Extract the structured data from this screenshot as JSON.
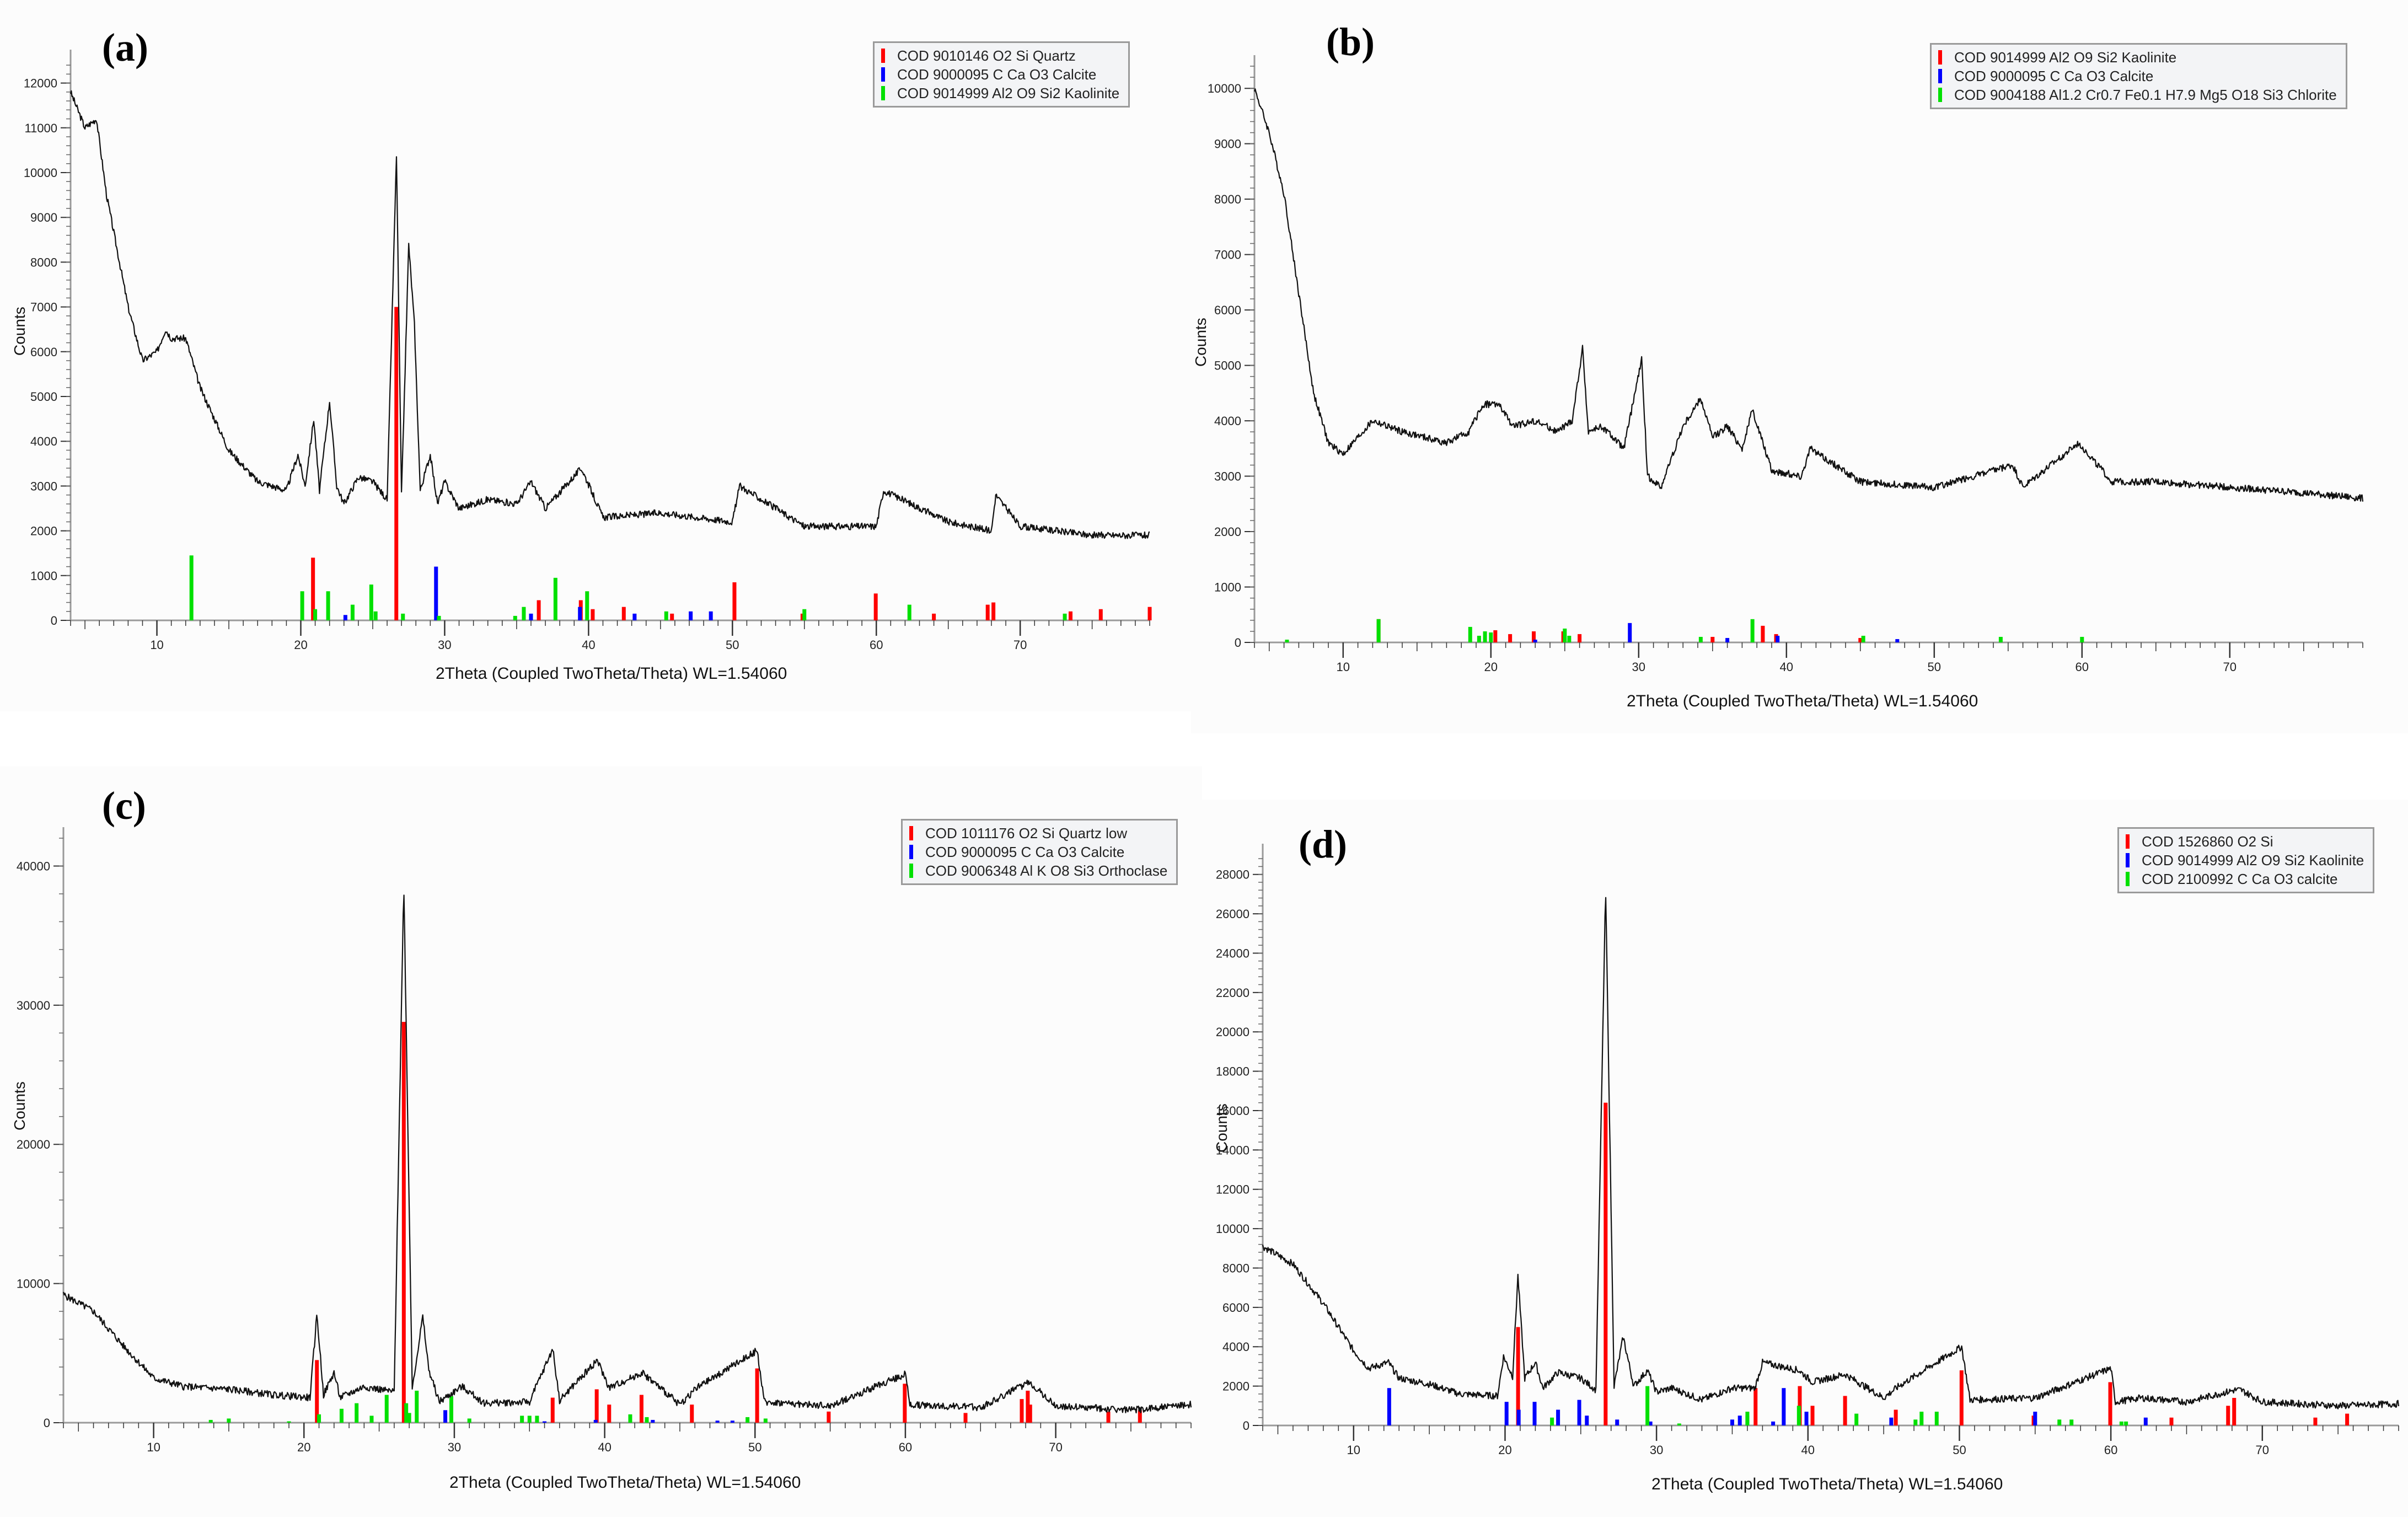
{
  "figure": {
    "panels": [
      {
        "id": "a",
        "label": "(a)",
        "legend": [
          {
            "text": "COD 9010146 O2 Si Quartz",
            "color": "#ff0000"
          },
          {
            "text": "COD 9000095 C Ca O3 Calcite",
            "color": "#0000ff"
          },
          {
            "text": "COD 9014999 Al2 O9 Si2 Kaolinite",
            "color": "#00e000"
          }
        ],
        "xlabel": "2Theta (Coupled TwoTheta/Theta) WL=1.54060",
        "ylabel": "Counts"
      },
      {
        "id": "b",
        "label": "(b)",
        "legend": [
          {
            "text": "COD 9014999 Al2 O9 Si2 Kaolinite",
            "color": "#ff0000"
          },
          {
            "text": "COD 9000095 C Ca O3 Calcite",
            "color": "#0000ff"
          },
          {
            "text": "COD 9004188 Al1.2 Cr0.7 Fe0.1 H7.9 Mg5 O18 Si3 Chlorite",
            "color": "#00e000"
          }
        ],
        "xlabel": "2Theta (Coupled TwoTheta/Theta) WL=1.54060",
        "ylabel": "Counts"
      },
      {
        "id": "c",
        "label": "(c)",
        "legend": [
          {
            "text": "COD 1011176 O2 Si Quartz low",
            "color": "#ff0000"
          },
          {
            "text": "COD 9000095 C Ca O3 Calcite",
            "color": "#0000ff"
          },
          {
            "text": "COD 9006348 Al K O8 Si3 Orthoclase",
            "color": "#00e000"
          }
        ],
        "xlabel": "2Theta (Coupled TwoTheta/Theta) WL=1.54060",
        "ylabel": "Counts"
      },
      {
        "id": "d",
        "label": "(d)",
        "legend": [
          {
            "text": "COD 1526860 O2 Si",
            "color": "#ff0000"
          },
          {
            "text": "COD 9014999 Al2 O9 Si2 Kaolinite",
            "color": "#0000ff"
          },
          {
            "text": "COD 2100992 C Ca O3 calcite",
            "color": "#00e000"
          }
        ],
        "xlabel": "2Theta (Coupled TwoTheta/Theta) WL=1.54060",
        "ylabel": "Counts"
      }
    ]
  },
  "chart_data": [
    {
      "type": "line",
      "panel": "a",
      "title": "(a)",
      "xlabel": "2Theta (Coupled TwoTheta/Theta) WL=1.54060",
      "ylabel": "Counts",
      "xlim": [
        4,
        79
      ],
      "ylim": [
        0,
        12500
      ],
      "xticks": [
        10,
        20,
        30,
        40,
        50,
        60,
        70
      ],
      "yticks": [
        0,
        1000,
        2000,
        3000,
        4000,
        5000,
        6000,
        7000,
        8000,
        9000,
        10000,
        11000,
        12000
      ],
      "pattern": {
        "x": [
          4,
          5,
          5.8,
          6.5,
          8,
          9,
          10,
          10.6,
          11,
          12,
          13,
          15,
          17,
          19,
          19.8,
          20.3,
          20.9,
          21.3,
          22,
          22.5,
          23,
          24,
          25,
          26,
          26.65,
          27,
          27.5,
          27.9,
          28.3,
          29,
          29.5,
          30,
          31,
          33,
          35,
          36,
          37,
          39.5,
          41,
          45,
          50,
          50.5,
          55,
          60,
          60.5,
          65,
          68,
          68.3,
          70,
          75,
          79
        ],
        "y": [
          11800,
          11000,
          11200,
          9500,
          7000,
          5800,
          6000,
          6500,
          6300,
          6300,
          5200,
          3800,
          3100,
          2900,
          3700,
          3000,
          4500,
          2900,
          4900,
          3000,
          2600,
          3200,
          3100,
          2700,
          10400,
          2800,
          8400,
          6600,
          2900,
          3700,
          2600,
          3100,
          2500,
          2700,
          2600,
          3100,
          2500,
          3400,
          2300,
          2400,
          2200,
          3000,
          2100,
          2100,
          2900,
          2200,
          2000,
          2800,
          2100,
          1900,
          1900
        ]
      },
      "series": [
        {
          "name": "COD 9010146 O2 Si Quartz",
          "color": "#ff0000",
          "x": [
            20.85,
            26.64,
            36.54,
            39.46,
            40.29,
            42.45,
            45.8,
            50.14,
            54.87,
            59.96,
            64.0,
            67.74,
            68.14,
            73.5,
            75.6,
            79
          ],
          "y": [
            1400,
            7000,
            450,
            450,
            250,
            300,
            150,
            850,
            150,
            600,
            150,
            350,
            400,
            200,
            250,
            300
          ]
        },
        {
          "name": "COD 9000095 C Ca O3 Calcite",
          "color": "#0000ff",
          "x": [
            23.1,
            29.4,
            36.0,
            39.4,
            43.2,
            47.1,
            48.5
          ],
          "y": [
            120,
            1200,
            150,
            300,
            150,
            200,
            200
          ]
        },
        {
          "name": "COD 9014999 Al2 O9 Si2 Kaolinite",
          "color": "#00e000",
          "x": [
            12.4,
            20.1,
            21.0,
            21.9,
            23.6,
            24.9,
            25.2,
            27.1,
            29.6,
            34.9,
            35.5,
            37.7,
            39.9,
            45.4,
            55.0,
            62.3,
            73.1
          ],
          "y": [
            1450,
            650,
            250,
            650,
            350,
            800,
            200,
            150,
            100,
            100,
            300,
            950,
            650,
            200,
            250,
            350,
            150
          ]
        }
      ]
    },
    {
      "type": "line",
      "panel": "b",
      "title": "(b)",
      "xlabel": "2Theta (Coupled TwoTheta/Theta) WL=1.54060",
      "ylabel": "Counts",
      "xlim": [
        4,
        79
      ],
      "ylim": [
        0,
        10400
      ],
      "xticks": [
        10,
        20,
        30,
        40,
        50,
        60,
        70
      ],
      "yticks": [
        0,
        1000,
        2000,
        3000,
        4000,
        5000,
        6000,
        7000,
        8000,
        9000,
        10000
      ],
      "pattern": {
        "x": [
          4,
          5,
          6,
          7,
          8,
          9,
          10,
          11,
          12,
          14,
          17,
          18.5,
          19.5,
          20.5,
          21.5,
          23,
          24.5,
          25.5,
          26.2,
          26.6,
          27.5,
          29,
          30.2,
          30.6,
          31.5,
          33,
          34.2,
          35,
          36,
          37,
          37.7,
          39,
          41,
          41.6,
          45,
          50,
          55.3,
          56,
          59.8,
          62,
          65,
          70,
          75,
          79
        ],
        "y": [
          10000,
          9200,
          8100,
          6300,
          4500,
          3600,
          3400,
          3700,
          4000,
          3800,
          3600,
          3800,
          4300,
          4300,
          3900,
          4000,
          3800,
          4000,
          5300,
          3800,
          3900,
          3500,
          5100,
          3000,
          2800,
          3900,
          4400,
          3700,
          3900,
          3500,
          4200,
          3100,
          3000,
          3500,
          2900,
          2800,
          3200,
          2800,
          3600,
          2900,
          2900,
          2800,
          2700,
          2600
        ]
      },
      "series": [
        {
          "name": "COD 9014999 Al2 O9 Si2 Kaolinite",
          "color": "#ff0000",
          "x": [
            12.4,
            20.3,
            21.3,
            22.9,
            24.9,
            26.0,
            35.0,
            38.4,
            39.3,
            45.0
          ],
          "y": [
            420,
            220,
            150,
            200,
            200,
            150,
            100,
            300,
            150,
            80
          ]
        },
        {
          "name": "COD 9000095 C Ca O3 Calcite",
          "color": "#0000ff",
          "x": [
            23.0,
            29.4,
            36.0,
            39.4,
            47.5
          ],
          "y": [
            50,
            350,
            80,
            120,
            60
          ]
        },
        {
          "name": "COD 9004188 Al1.2 Cr0.7 Fe0.1 H7.9 Mg5 O18 Si3 Chlorite",
          "color": "#00e000",
          "x": [
            6.2,
            12.4,
            18.6,
            19.2,
            19.6,
            20.0,
            25.0,
            25.3,
            34.2,
            37.7,
            45.2,
            54.5,
            60.0
          ],
          "y": [
            50,
            420,
            280,
            120,
            200,
            180,
            250,
            120,
            100,
            420,
            120,
            100,
            100
          ]
        }
      ]
    },
    {
      "type": "line",
      "panel": "c",
      "title": "(c)",
      "xlabel": "2Theta (Coupled TwoTheta/Theta) WL=1.54060",
      "ylabel": "Counts",
      "xlim": [
        4,
        79
      ],
      "ylim": [
        0,
        42000
      ],
      "xticks": [
        10,
        20,
        30,
        40,
        50,
        60,
        70
      ],
      "yticks": [
        0,
        10000,
        20000,
        30000,
        40000
      ],
      "pattern": {
        "x": [
          4,
          6,
          8,
          10,
          12,
          15,
          18,
          20.4,
          20.86,
          21.3,
          22,
          22.4,
          24,
          26,
          26.64,
          27.2,
          27.9,
          28.3,
          29,
          30.5,
          32,
          35,
          36.55,
          37,
          39.5,
          40.3,
          42.5,
          45,
          46,
          50.15,
          50.6,
          55,
          60,
          60.3,
          65,
          68.2,
          68.5,
          70,
          75,
          79
        ],
        "y": [
          9200,
          8000,
          5500,
          3200,
          2600,
          2400,
          2000,
          1800,
          7800,
          2000,
          3600,
          1800,
          2600,
          2200,
          38800,
          2500,
          7600,
          3800,
          1500,
          2600,
          1400,
          1500,
          5300,
          1600,
          4500,
          2500,
          3600,
          1300,
          2400,
          5200,
          1500,
          1200,
          3500,
          1300,
          1100,
          2900,
          2700,
          1200,
          900,
          1300
        ]
      },
      "series": [
        {
          "name": "COD 1011176 O2 Si Quartz low",
          "color": "#ff0000",
          "x": [
            20.86,
            26.64,
            36.54,
            39.47,
            40.3,
            42.45,
            45.8,
            50.14,
            54.9,
            59.96,
            64.0,
            67.74,
            68.14,
            68.3,
            73.5,
            75.6
          ],
          "y": [
            4500,
            28800,
            1800,
            2400,
            1300,
            2000,
            1300,
            3900,
            800,
            2800,
            700,
            1700,
            2300,
            1300,
            800,
            900
          ]
        },
        {
          "name": "COD 9000095 C Ca O3 Calcite",
          "color": "#0000ff",
          "x": [
            29.4,
            36.0,
            39.4,
            43.2,
            47.5,
            48.5
          ],
          "y": [
            900,
            100,
            200,
            200,
            150,
            150
          ]
        },
        {
          "name": "COD 9006348 Al K O8 Si3 Orthoclase",
          "color": "#00e000",
          "x": [
            13.8,
            15.0,
            19.0,
            21.0,
            22.5,
            23.5,
            24.5,
            25.5,
            26.8,
            27.0,
            27.5,
            29.8,
            31.0,
            34.5,
            35.0,
            35.5,
            41.7,
            42.8,
            49.5,
            50.7
          ],
          "y": [
            200,
            300,
            100,
            600,
            1000,
            1400,
            500,
            2000,
            1400,
            700,
            2300,
            1900,
            300,
            500,
            500,
            500,
            600,
            400,
            400,
            300
          ]
        }
      ]
    },
    {
      "type": "line",
      "panel": "d",
      "title": "(d)",
      "xlabel": "2Theta (Coupled TwoTheta/Theta) WL=1.54060",
      "ylabel": "Counts",
      "xlim": [
        4,
        79
      ],
      "ylim": [
        0,
        29000
      ],
      "xticks": [
        10,
        20,
        30,
        40,
        50,
        60,
        70
      ],
      "yticks": [
        0,
        2000,
        4000,
        6000,
        8000,
        10000,
        12000,
        14000,
        16000,
        18000,
        20000,
        22000,
        24000,
        26000,
        28000
      ],
      "pattern": {
        "x": [
          4,
          6,
          8,
          10,
          11,
          12.3,
          13,
          15,
          17,
          19.5,
          19.9,
          20.5,
          20.85,
          21.3,
          22,
          22.5,
          23.5,
          25,
          26,
          26.64,
          27.2,
          27.8,
          28.5,
          29.4,
          30,
          31,
          33,
          35,
          36.5,
          37,
          39.4,
          40.3,
          42.45,
          45,
          46,
          50.15,
          50.7,
          55,
          60,
          60.3,
          62,
          65,
          68.2,
          68.6,
          70,
          75,
          79
        ],
        "y": [
          9100,
          8200,
          6200,
          3800,
          2900,
          3200,
          2400,
          2100,
          1600,
          1500,
          3500,
          2500,
          7600,
          2400,
          3200,
          1900,
          2700,
          2400,
          1800,
          27300,
          2000,
          4500,
          2000,
          2800,
          1700,
          1900,
          1300,
          1900,
          1900,
          3200,
          2800,
          2200,
          2600,
          1400,
          2000,
          4000,
          1300,
          1400,
          2900,
          1200,
          1400,
          1200,
          1800,
          1800,
          1200,
          1000,
          1100
        ]
      },
      "series": [
        {
          "name": "COD 1526860 O2 Si",
          "color": "#ff0000",
          "x": [
            20.86,
            26.64,
            36.54,
            39.46,
            40.3,
            42.45,
            45.8,
            50.14,
            54.9,
            59.96,
            64.0,
            67.74,
            68.14,
            73.5,
            75.6
          ],
          "y": [
            5000,
            16400,
            1900,
            2000,
            1000,
            1500,
            800,
            2800,
            500,
            2200,
            400,
            1000,
            1400,
            400,
            600
          ]
        },
        {
          "name": "COD 9014999 Al2 O9 Si2 Kaolinite",
          "color": "#0000ff",
          "x": [
            12.35,
            20.1,
            20.9,
            21.95,
            23.5,
            24.9,
            25.4,
            27.4,
            29.6,
            35.0,
            35.5,
            36.0,
            37.7,
            38.4,
            39.9,
            45.5,
            55.0,
            62.3
          ],
          "y": [
            1900,
            1200,
            800,
            1200,
            800,
            1300,
            500,
            300,
            200,
            300,
            500,
            500,
            200,
            1900,
            700,
            400,
            700,
            400
          ]
        },
        {
          "name": "COD 2100992 C Ca O3 calcite",
          "color": "#00e000",
          "x": [
            23.1,
            29.4,
            31.5,
            36.0,
            39.4,
            43.2,
            47.1,
            47.5,
            48.5,
            56.6,
            57.4,
            60.7,
            61.0
          ],
          "y": [
            400,
            2000,
            100,
            700,
            1000,
            600,
            300,
            700,
            700,
            300,
            300,
            200,
            200
          ]
        }
      ]
    }
  ]
}
